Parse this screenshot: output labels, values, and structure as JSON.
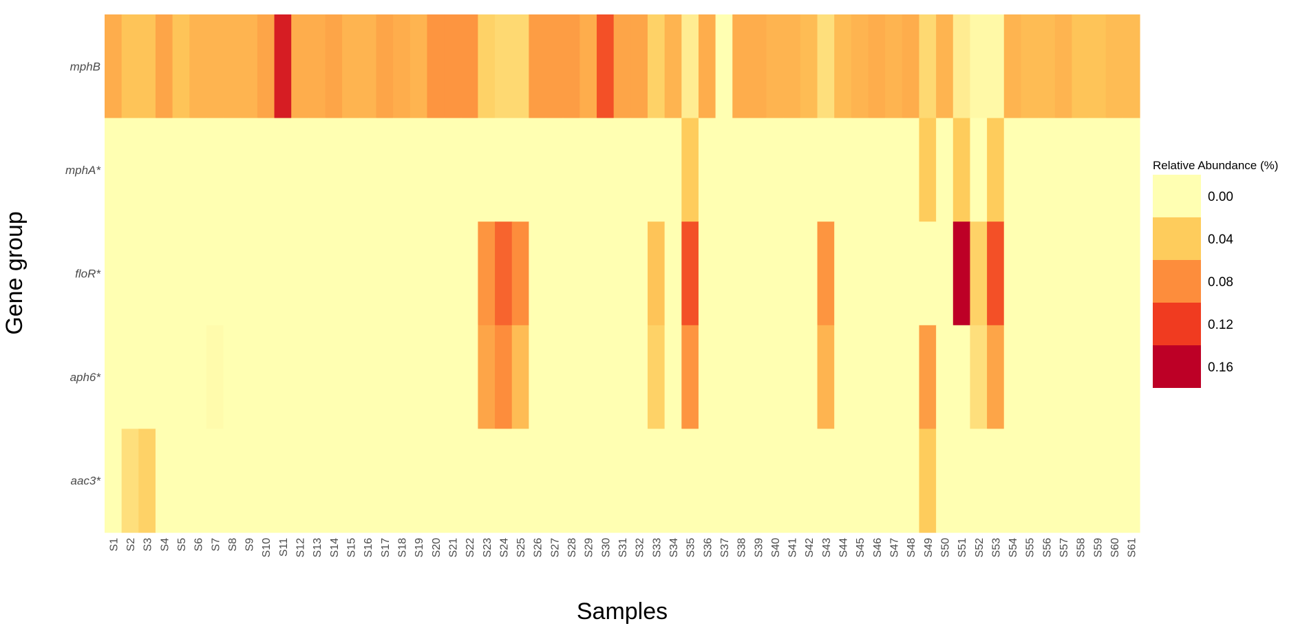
{
  "chart_data": {
    "type": "heatmap",
    "xlabel": "Samples",
    "ylabel": "Gene group",
    "legend": {
      "title": "Relative Abundance (%)",
      "position": "right",
      "breaks": [
        "0.00",
        "0.04",
        "0.08",
        "0.12",
        "0.16"
      ],
      "colors": [
        "#FFFFB2",
        "#FECC5C",
        "#FD8D3C",
        "#F03B20",
        "#BD0026"
      ]
    },
    "grid": false,
    "x": [
      "S1",
      "S2",
      "S3",
      "S4",
      "S5",
      "S6",
      "S7",
      "S8",
      "S9",
      "S10",
      "S11",
      "S12",
      "S13",
      "S14",
      "S15",
      "S16",
      "S17",
      "S18",
      "S19",
      "S20",
      "S21",
      "S22",
      "S23",
      "S24",
      "S25",
      "S26",
      "S27",
      "S28",
      "S29",
      "S30",
      "S31",
      "S32",
      "S33",
      "S34",
      "S35",
      "S36",
      "S37",
      "S38",
      "S39",
      "S40",
      "S41",
      "S42",
      "S43",
      "S44",
      "S45",
      "S46",
      "S47",
      "S48",
      "S49",
      "S50",
      "S51",
      "S52",
      "S53",
      "S54",
      "S55",
      "S56",
      "S57",
      "S58",
      "S59",
      "S60",
      "S61"
    ],
    "y": [
      "mphB",
      "mphA*",
      "floR*",
      "aph6*",
      "aac3*"
    ],
    "value_range": [
      0,
      0.16
    ],
    "values": [
      [
        0.06,
        0.045,
        0.045,
        0.065,
        0.045,
        0.055,
        0.055,
        0.055,
        0.055,
        0.065,
        0.14,
        0.06,
        0.06,
        0.065,
        0.055,
        0.055,
        0.065,
        0.06,
        0.055,
        0.075,
        0.075,
        0.075,
        0.035,
        0.03,
        0.03,
        0.07,
        0.07,
        0.07,
        0.06,
        0.11,
        0.065,
        0.065,
        0.035,
        0.055,
        0.015,
        0.06,
        0.0,
        0.06,
        0.06,
        0.055,
        0.055,
        0.05,
        0.025,
        0.05,
        0.055,
        0.06,
        0.055,
        0.06,
        0.03,
        0.055,
        0.015,
        0.005,
        0.005,
        0.055,
        0.05,
        0.05,
        0.055,
        0.045,
        0.045,
        0.05,
        0.05
      ],
      [
        0,
        0,
        0,
        0,
        0,
        0,
        0,
        0,
        0,
        0,
        0,
        0,
        0,
        0,
        0,
        0,
        0,
        0,
        0,
        0,
        0,
        0,
        0,
        0,
        0,
        0,
        0,
        0,
        0,
        0,
        0,
        0,
        0,
        0,
        0.04,
        0,
        0,
        0,
        0,
        0,
        0,
        0,
        0,
        0,
        0,
        0,
        0,
        0,
        0.04,
        0,
        0.04,
        0,
        0.04,
        0,
        0,
        0,
        0,
        0,
        0,
        0,
        0
      ],
      [
        0,
        0,
        0,
        0,
        0,
        0,
        0,
        0,
        0,
        0,
        0,
        0,
        0,
        0,
        0,
        0,
        0,
        0,
        0,
        0,
        0,
        0,
        0.075,
        0.1,
        0.08,
        0,
        0,
        0,
        0,
        0,
        0,
        0,
        0.045,
        0,
        0.11,
        0,
        0,
        0,
        0,
        0,
        0,
        0,
        0.075,
        0,
        0,
        0,
        0,
        0,
        0,
        0,
        0.165,
        0.035,
        0.11,
        0,
        0,
        0,
        0,
        0,
        0,
        0,
        0
      ],
      [
        0,
        0,
        0,
        0,
        0,
        0,
        0.003,
        0,
        0,
        0,
        0,
        0,
        0,
        0,
        0,
        0,
        0,
        0,
        0,
        0,
        0,
        0,
        0.065,
        0.08,
        0.05,
        0,
        0,
        0,
        0,
        0,
        0,
        0,
        0.035,
        0,
        0.075,
        0,
        0,
        0,
        0,
        0,
        0,
        0,
        0.055,
        0,
        0,
        0,
        0,
        0,
        0.07,
        0,
        0,
        0.025,
        0.065,
        0,
        0,
        0,
        0,
        0,
        0,
        0,
        0
      ],
      [
        0,
        0.025,
        0.035,
        0,
        0,
        0,
        0,
        0,
        0,
        0,
        0,
        0,
        0,
        0,
        0,
        0,
        0,
        0,
        0,
        0,
        0,
        0,
        0,
        0,
        0,
        0,
        0,
        0,
        0,
        0,
        0,
        0,
        0,
        0,
        0,
        0,
        0,
        0,
        0,
        0,
        0,
        0,
        0,
        0,
        0,
        0,
        0,
        0,
        0.04,
        0,
        0,
        0,
        0,
        0,
        0,
        0,
        0,
        0,
        0,
        0,
        0
      ]
    ]
  }
}
